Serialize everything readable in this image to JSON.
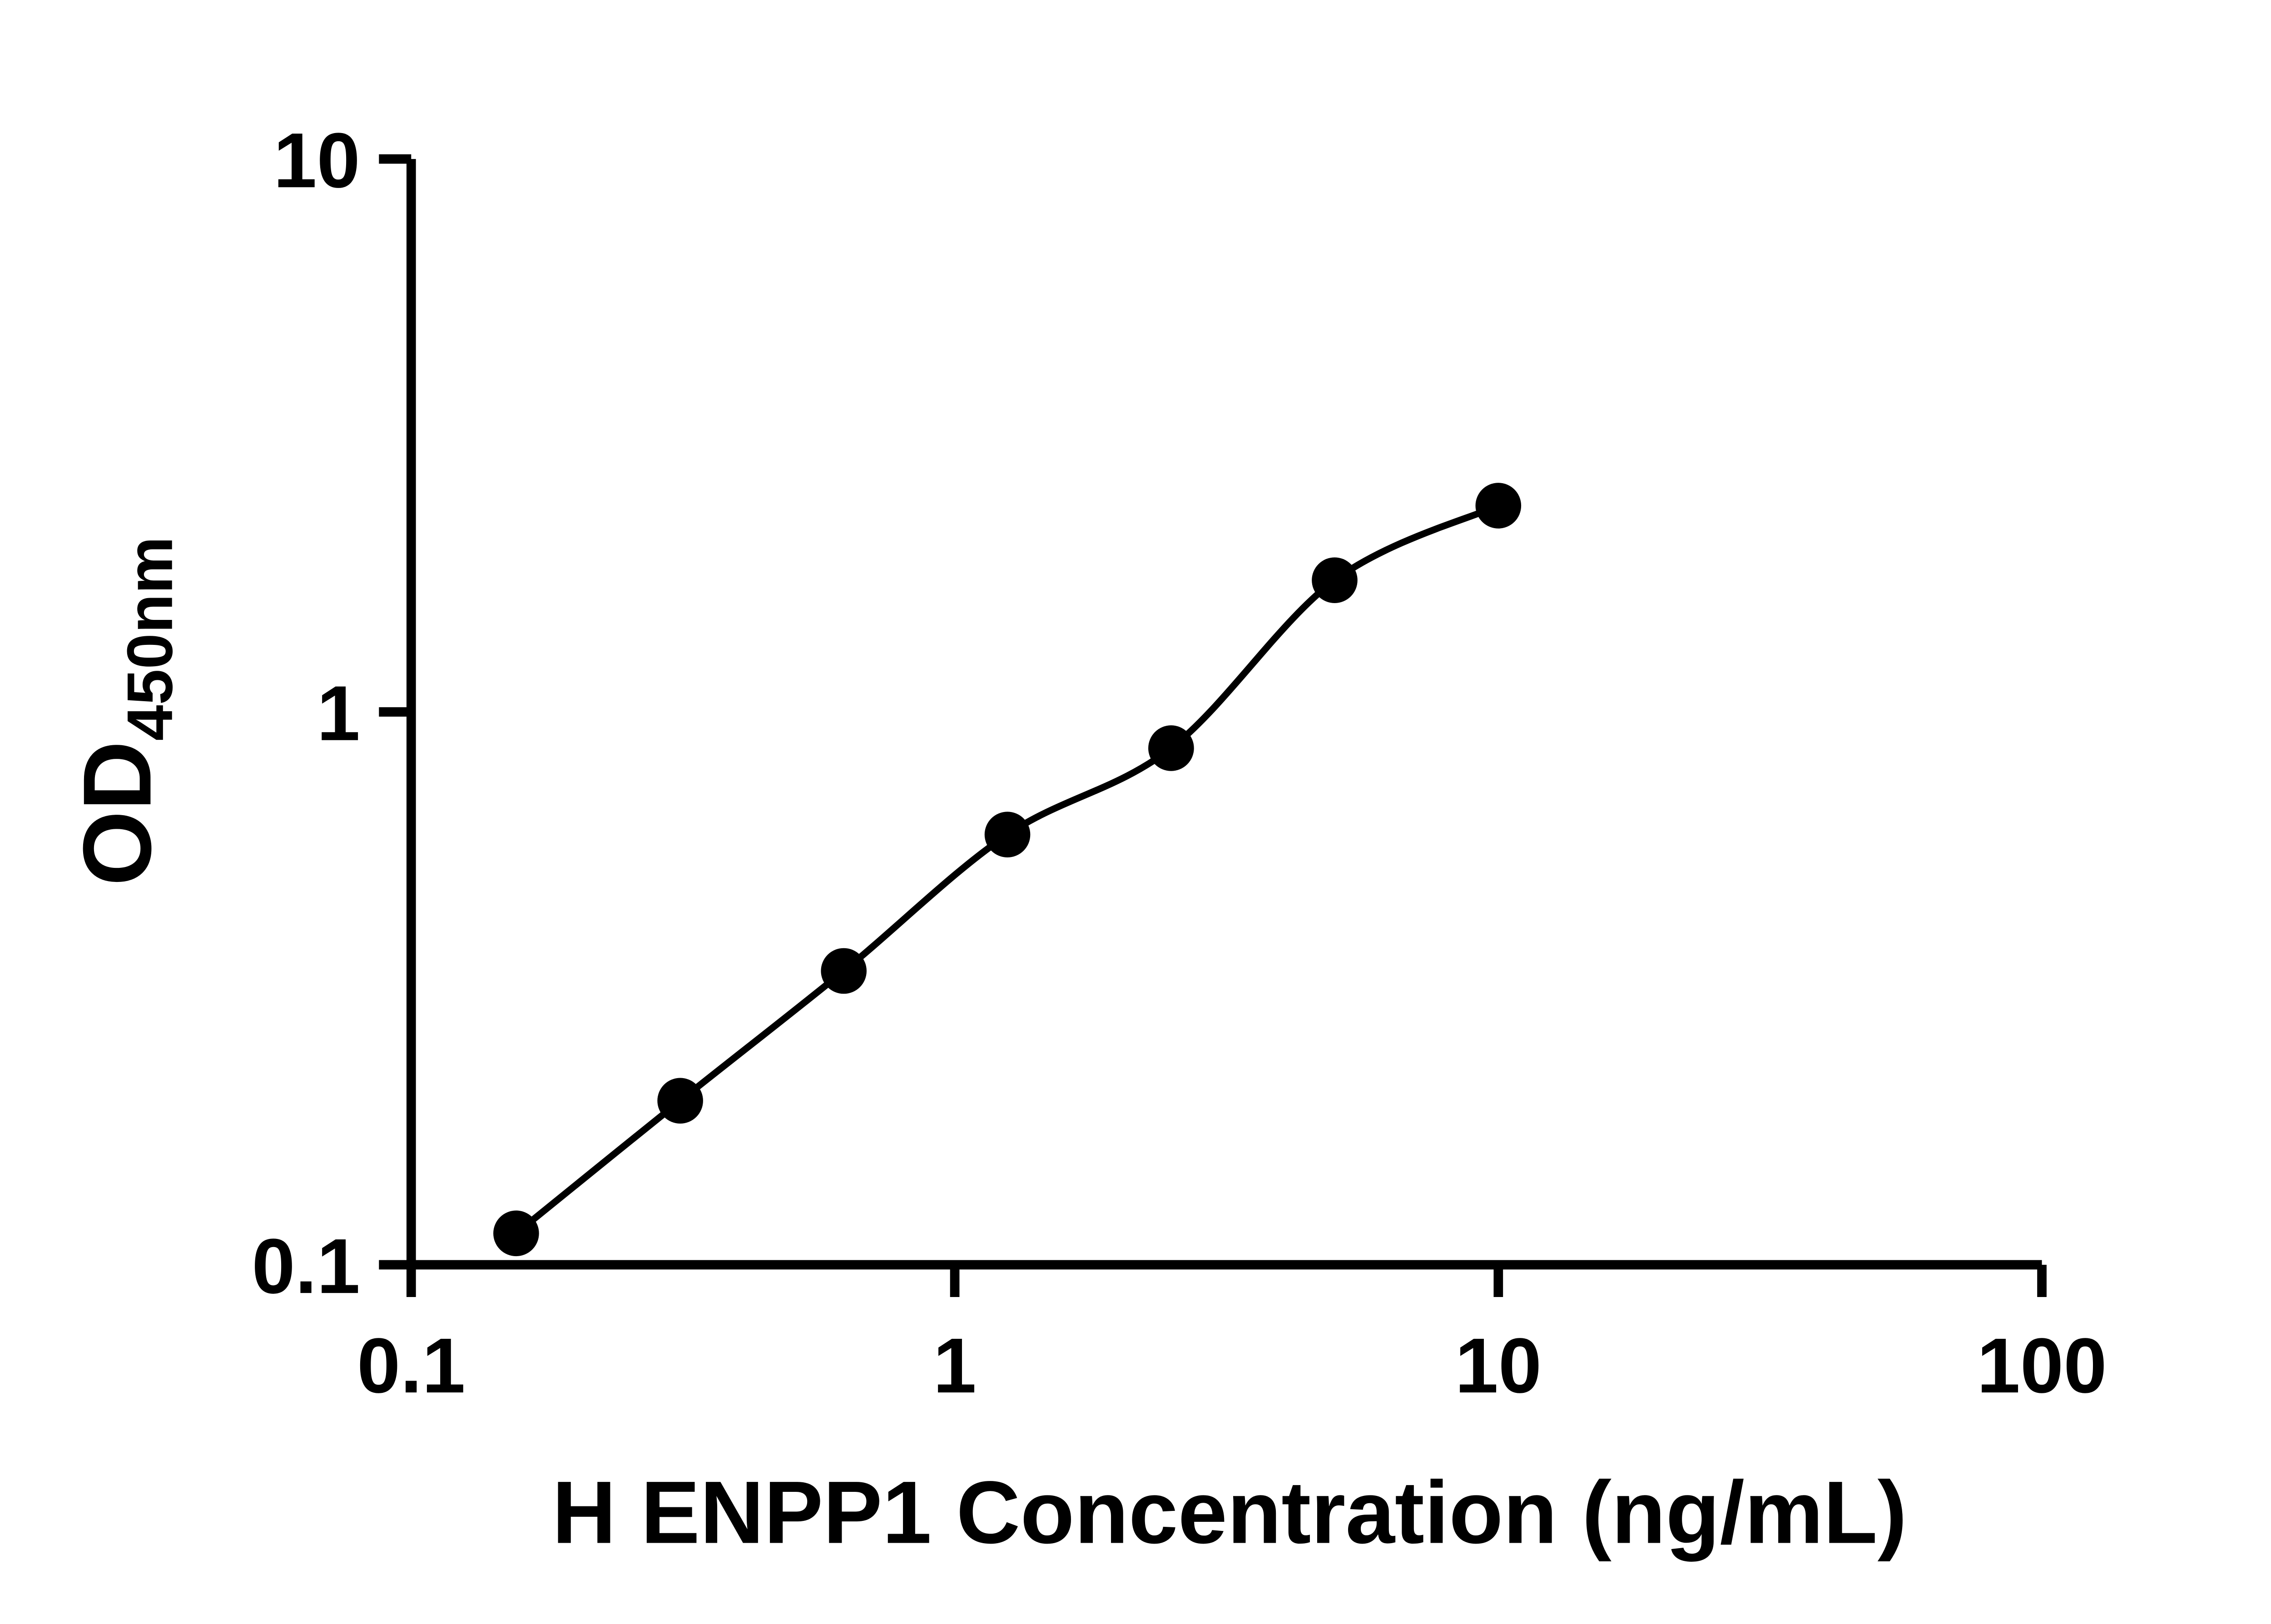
{
  "chart_data": {
    "type": "scatter",
    "title": "",
    "xlabel": "H ENPP1 Concentration (ng/mL)",
    "ylabel_main": "OD",
    "ylabel_sub": "450nm",
    "x_scale": "log",
    "y_scale": "log",
    "xlim": [
      0.1,
      100
    ],
    "ylim": [
      0.1,
      10
    ],
    "x_tick_values": [
      0.1,
      1,
      10,
      100
    ],
    "x_tick_labels": [
      "0.1",
      "1",
      "10",
      "100"
    ],
    "y_tick_values": [
      10,
      1,
      0.1
    ],
    "y_tick_labels": [
      "10",
      "1",
      "0.1"
    ],
    "grid": false,
    "legend": "none",
    "fit_line": true,
    "points": {
      "x": [
        0.156,
        0.3125,
        0.625,
        1.25,
        2.5,
        5,
        10
      ],
      "y": [
        0.114,
        0.198,
        0.34,
        0.6,
        0.86,
        1.73,
        2.36
      ]
    },
    "colors": {
      "axis": "#000000",
      "marker": "#000000",
      "line": "#000000",
      "background": "#ffffff"
    }
  }
}
